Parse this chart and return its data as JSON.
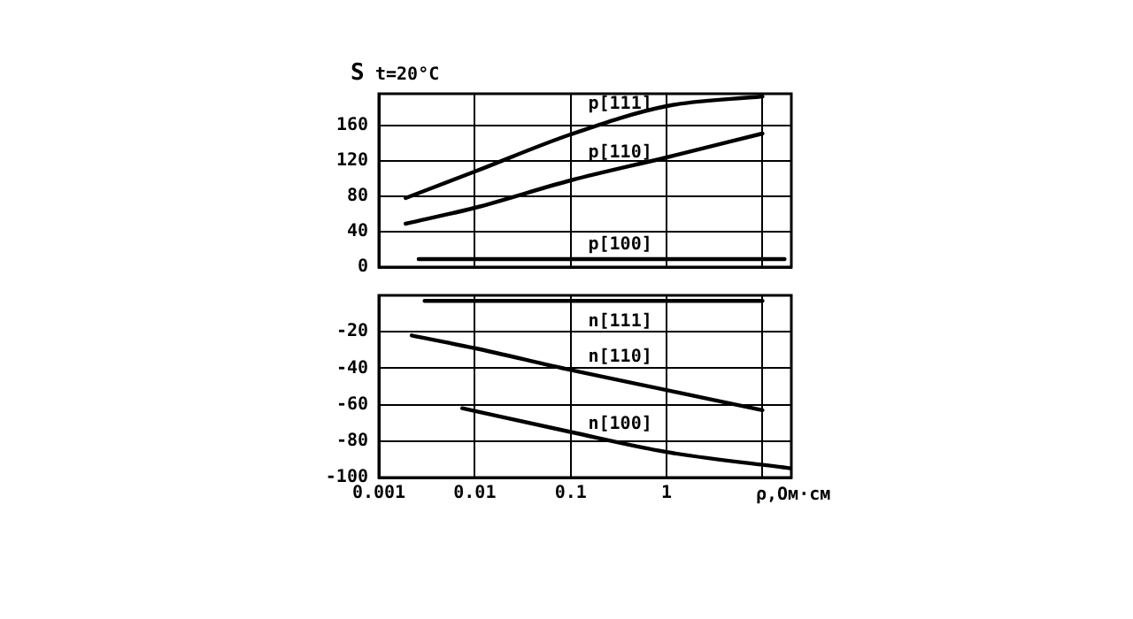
{
  "chart_data": [
    {
      "type": "line",
      "title": "t=20°C",
      "ylabel": "S",
      "log": "x",
      "tick_labels": "y",
      "xlim": [
        0.001,
        20
      ],
      "xticks": [
        0.001,
        0.01,
        0.1,
        1,
        {
          "value": 10,
          "label": null
        }
      ],
      "ylim": [
        0,
        196
      ],
      "yticks": [
        0,
        40,
        80,
        120,
        160
      ],
      "grid": true,
      "legend": false,
      "marker": "none",
      "line_style": "solid",
      "series": [
        {
          "name": "p[111]",
          "color": "#000000",
          "x": [
            0.0019,
            0.01,
            0.1,
            1,
            10
          ],
          "values": [
            78,
            108,
            150,
            182,
            193
          ]
        },
        {
          "name": "p[110]",
          "color": "#000000",
          "x": [
            0.0019,
            0.01,
            0.1,
            1,
            10
          ],
          "values": [
            49,
            67,
            98,
            124,
            151
          ]
        },
        {
          "name": "p[100]",
          "color": "#000000",
          "x": [
            0.0026,
            17
          ],
          "values": [
            9,
            9
          ]
        }
      ]
    },
    {
      "type": "line",
      "xlabel": "ρ,Ом·см",
      "log": "x",
      "xlim": [
        0.001,
        20
      ],
      "xticks": [
        0.001,
        0.01,
        0.1,
        1,
        {
          "value": 10,
          "label": null
        }
      ],
      "ylim": [
        -100,
        0
      ],
      "yticks": [
        -100,
        -80,
        -60,
        -40,
        -20
      ],
      "grid": true,
      "legend": false,
      "marker": "none",
      "line_style": "solid",
      "series": [
        {
          "name": "n[111]",
          "color": "#000000",
          "x": [
            0.003,
            10
          ],
          "values": [
            -3,
            -3
          ]
        },
        {
          "name": "n[110]",
          "color": "#000000",
          "x": [
            0.0022,
            0.01,
            0.1,
            1,
            10
          ],
          "values": [
            -22,
            -29,
            -41,
            -52,
            -63
          ]
        },
        {
          "name": "n[100]",
          "color": "#000000",
          "x": [
            0.0074,
            0.1,
            1,
            20
          ],
          "values": [
            -62,
            -75,
            -86,
            -95
          ]
        }
      ]
    }
  ]
}
